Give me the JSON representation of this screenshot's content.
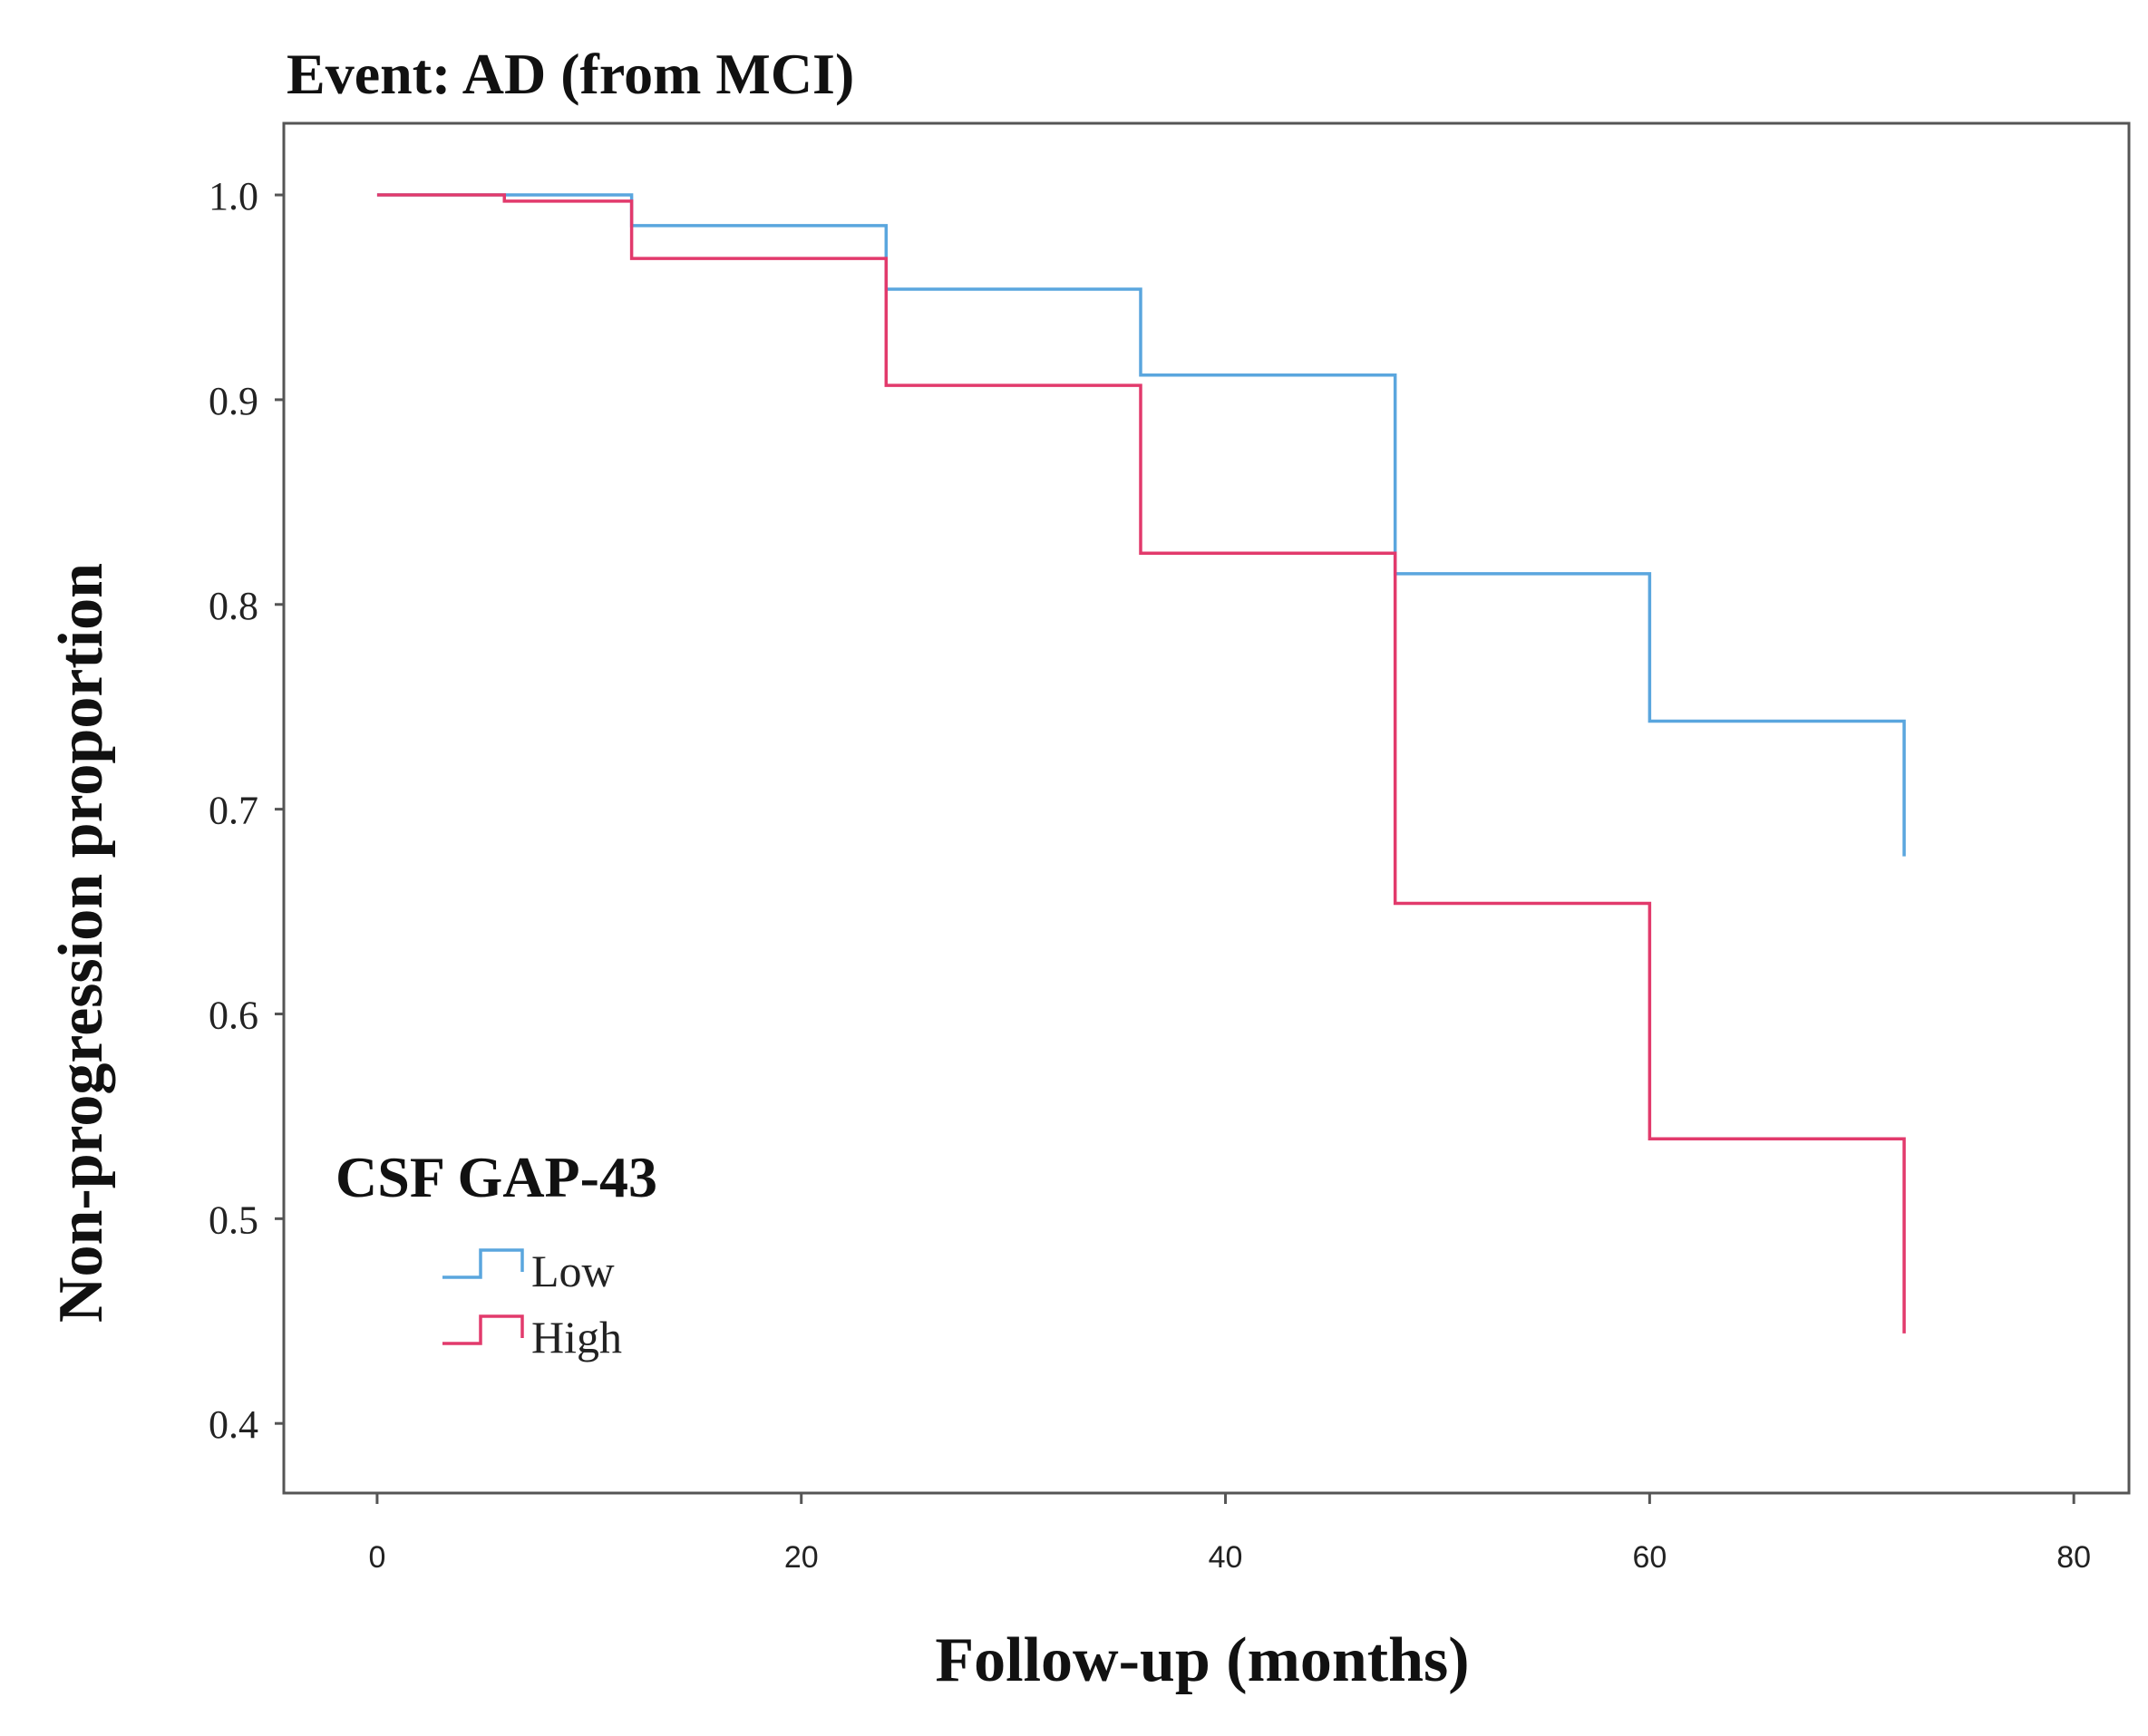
{
  "chart_data": {
    "type": "line",
    "subtype": "kaplan-meier-step",
    "title": "Event: AD (from MCI)",
    "xlabel": "Follow-up (months)",
    "ylabel": "Non-progression proportion",
    "xlim": [
      -4.4,
      82.6
    ],
    "ylim": [
      0.366,
      1.035
    ],
    "x_ticks": [
      0,
      20,
      40,
      60,
      80
    ],
    "x_tick_labels": [
      "0",
      "20",
      "40",
      "60",
      "80"
    ],
    "y_ticks": [
      0.4,
      0.5,
      0.6,
      0.7,
      0.8,
      0.9,
      1.0
    ],
    "y_tick_labels": [
      "0.4",
      "0.5",
      "0.6",
      "0.7",
      "0.8",
      "0.9",
      "1.0"
    ],
    "grid": false,
    "legend_title": "CSF GAP-43",
    "legend_position": "bottom-left",
    "series": [
      {
        "name": "Low",
        "color": "#5aa6de",
        "steps": [
          {
            "x": 0,
            "y": 1.0
          },
          {
            "x": 12,
            "y": 0.985
          },
          {
            "x": 24,
            "y": 0.954
          },
          {
            "x": 36,
            "y": 0.912
          },
          {
            "x": 48,
            "y": 0.815
          },
          {
            "x": 60,
            "y": 0.743
          },
          {
            "x": 72,
            "y": 0.677
          }
        ]
      },
      {
        "name": "High",
        "color": "#e23a6c",
        "steps": [
          {
            "x": 0,
            "y": 1.0
          },
          {
            "x": 6,
            "y": 0.997
          },
          {
            "x": 12,
            "y": 0.969
          },
          {
            "x": 24,
            "y": 0.907
          },
          {
            "x": 36,
            "y": 0.825
          },
          {
            "x": 48,
            "y": 0.654
          },
          {
            "x": 60,
            "y": 0.539
          },
          {
            "x": 72,
            "y": 0.444
          }
        ]
      }
    ]
  }
}
